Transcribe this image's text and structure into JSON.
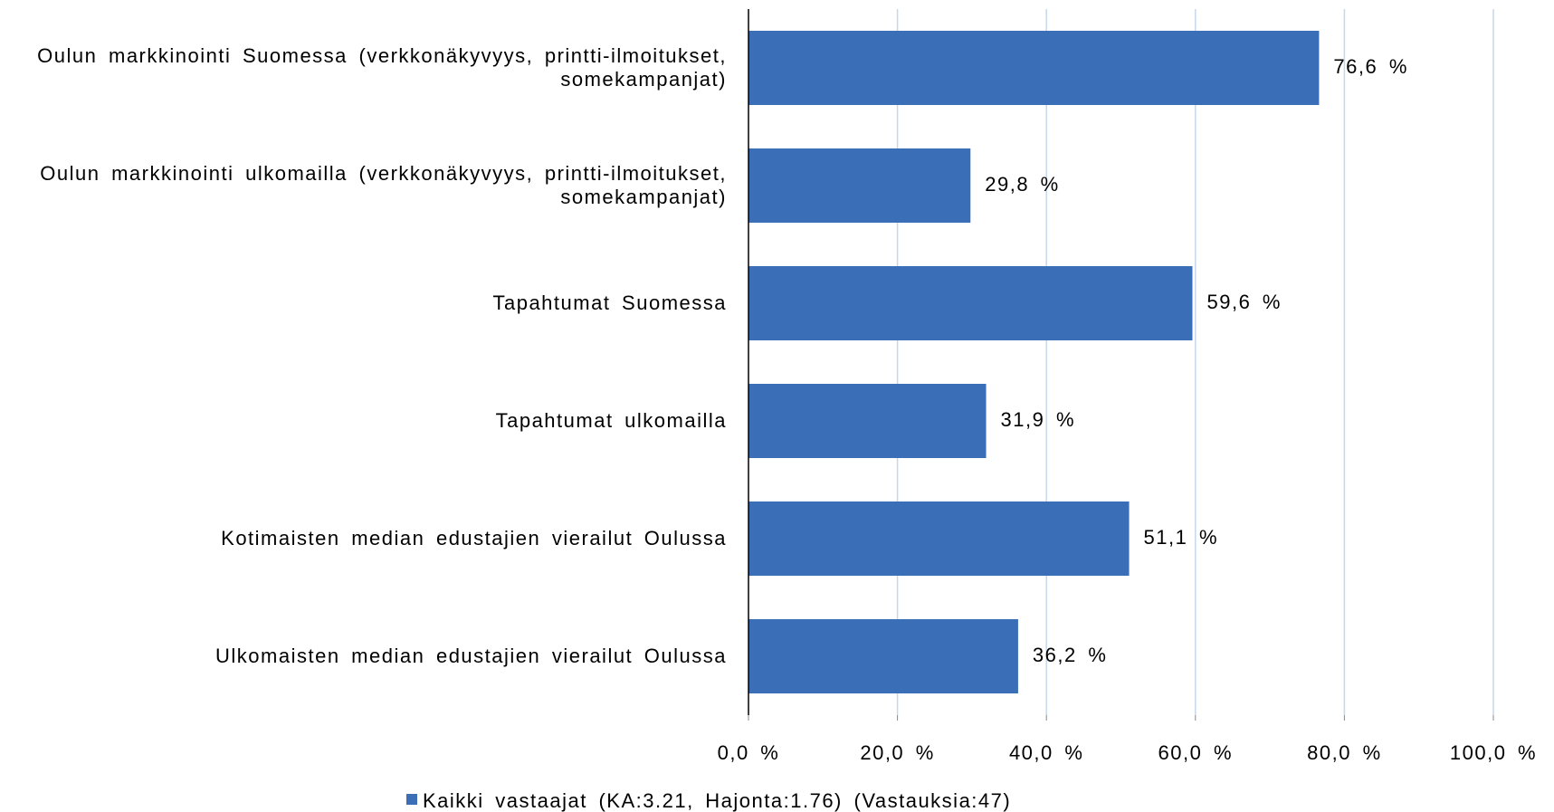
{
  "chart_data": {
    "type": "hbar",
    "categories": [
      "Oulun markkinointi Suomessa (verkkonäkyvyys, printti-ilmoitukset, somekampanjat)",
      "Oulun markkinointi ulkomailla (verkkonäkyvyys, printti-ilmoitukset, somekampanjat)",
      "Tapahtumat Suomessa",
      "Tapahtumat ulkomailla",
      "Kotimaisten median edustajien vierailut Oulussa",
      "Ulkomaisten median edustajien vierailut Oulussa"
    ],
    "series": [
      {
        "name": "Kaikki vastaajat (KA:3.21, Hajonta:1.76) (Vastauksia:47)",
        "color": "#3a6fb8",
        "values": [
          76.6,
          29.8,
          59.6,
          31.9,
          51.1,
          36.2
        ],
        "value_labels": [
          "76,6 %",
          "29,8 %",
          "59,6 %",
          "31,9 %",
          "51,1 %",
          "36,2 %"
        ]
      }
    ],
    "xlim": [
      0,
      100
    ],
    "xticks": [
      {
        "value": 0,
        "label": "0,0 %"
      },
      {
        "value": 20,
        "label": "20,0 %"
      },
      {
        "value": 40,
        "label": "40,0 %"
      },
      {
        "value": 60,
        "label": "60,0 %"
      },
      {
        "value": 80,
        "label": "80,0 %"
      },
      {
        "value": 100,
        "label": "100,0 %"
      }
    ],
    "grid": true,
    "legend": "bottom"
  }
}
